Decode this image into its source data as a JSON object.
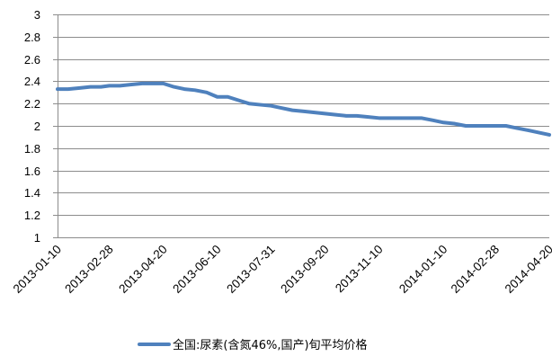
{
  "chart_data": {
    "type": "line",
    "title": "",
    "xlabel": "",
    "ylabel": "",
    "ylim": [
      1,
      3
    ],
    "yticks": [
      "1",
      "1.2",
      "1.4",
      "1.6",
      "1.8",
      "2",
      "2.2",
      "2.4",
      "2.6",
      "2.8",
      "3"
    ],
    "xticks": [
      "2013-01-10",
      "2013-02-28",
      "2013-04-20",
      "2013-06-10",
      "2013-07-31",
      "2013-09-20",
      "2013-11-10",
      "2014-01-10",
      "2014-02-28",
      "2014-04-20"
    ],
    "grid": true,
    "legend_position": "bottom",
    "color": "#4F81BD",
    "series": [
      {
        "name": "全国:尿素(含氮46%,国产)旬平均价格",
        "x": [
          "2013-01-10",
          "2013-01-20",
          "2013-01-31",
          "2013-02-10",
          "2013-02-20",
          "2013-02-28",
          "2013-03-10",
          "2013-03-20",
          "2013-03-31",
          "2013-04-10",
          "2013-04-20",
          "2013-04-30",
          "2013-05-10",
          "2013-05-20",
          "2013-05-31",
          "2013-06-10",
          "2013-06-20",
          "2013-06-30",
          "2013-07-10",
          "2013-07-20",
          "2013-07-31",
          "2013-08-10",
          "2013-08-20",
          "2013-08-31",
          "2013-09-10",
          "2013-09-20",
          "2013-09-30",
          "2013-10-10",
          "2013-10-20",
          "2013-10-31",
          "2013-11-10",
          "2013-11-20",
          "2013-11-30",
          "2013-12-10",
          "2013-12-20",
          "2013-12-31",
          "2014-01-10",
          "2014-01-20",
          "2014-01-31",
          "2014-02-10",
          "2014-02-20",
          "2014-02-28",
          "2014-03-10",
          "2014-03-20",
          "2014-03-31",
          "2014-04-10",
          "2014-04-20"
        ],
        "values": [
          2.33,
          2.33,
          2.34,
          2.35,
          2.35,
          2.36,
          2.36,
          2.37,
          2.38,
          2.38,
          2.38,
          2.35,
          2.33,
          2.32,
          2.3,
          2.26,
          2.26,
          2.23,
          2.2,
          2.19,
          2.18,
          2.16,
          2.14,
          2.13,
          2.12,
          2.11,
          2.1,
          2.09,
          2.09,
          2.08,
          2.07,
          2.07,
          2.07,
          2.07,
          2.07,
          2.05,
          2.03,
          2.02,
          2.0,
          2.0,
          2.0,
          2.0,
          2.0,
          1.98,
          1.96,
          1.94,
          1.92
        ]
      }
    ]
  }
}
